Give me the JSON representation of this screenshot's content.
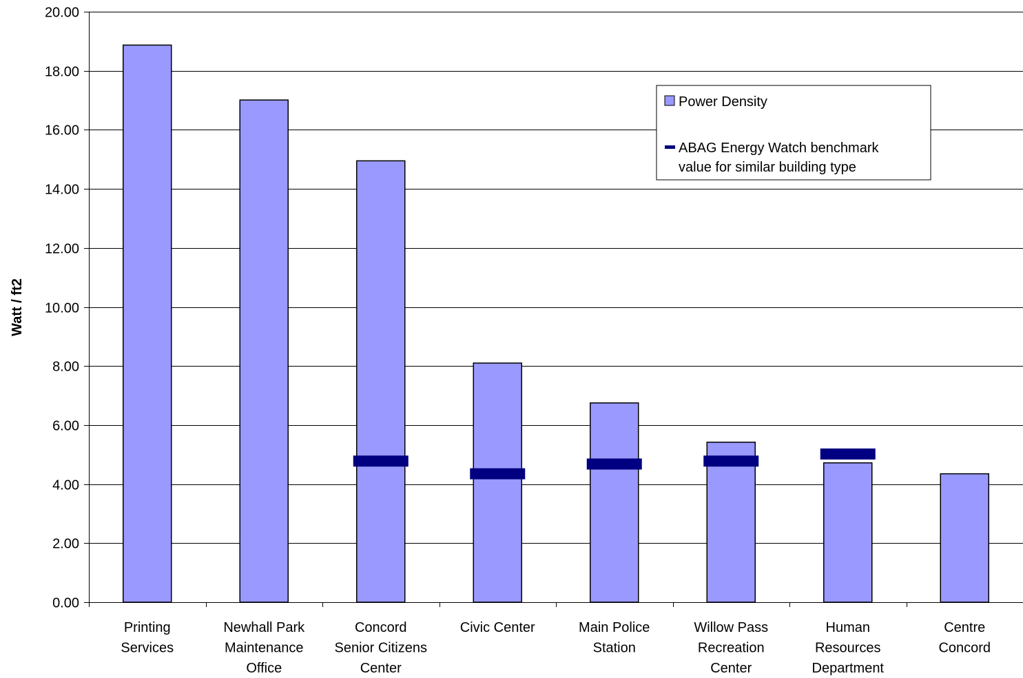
{
  "chart_data": {
    "type": "bar",
    "title": "",
    "xlabel": "",
    "ylabel": "Watt / ft2",
    "ylim": [
      0,
      20
    ],
    "ytick_step": 2,
    "ytick_labels": [
      "0.00",
      "2.00",
      "4.00",
      "6.00",
      "8.00",
      "10.00",
      "12.00",
      "14.00",
      "16.00",
      "18.00",
      "20.00"
    ],
    "grid": true,
    "legend_position": "top-right",
    "categories": [
      [
        "Printing",
        "Services"
      ],
      [
        "Newhall Park",
        "Maintenance",
        "Office"
      ],
      [
        "Concord",
        "Senior Citizens",
        "Center"
      ],
      [
        "Civic Center"
      ],
      [
        "Main Police",
        "Station"
      ],
      [
        "Willow Pass",
        "Recreation",
        "Center"
      ],
      [
        "Human",
        "Resources",
        "Department"
      ],
      [
        "Centre",
        "Concord"
      ]
    ],
    "series": [
      {
        "name": "Power Density",
        "type": "bar",
        "color": "#9999FF",
        "values": [
          18.87,
          17.01,
          14.95,
          8.1,
          6.75,
          5.42,
          4.72,
          4.35
        ]
      },
      {
        "name": "ABAG Energy Watch benchmark value for similar building type",
        "legend_lines": [
          "ABAG Energy Watch benchmark",
          "value for similar building type"
        ],
        "type": "marker",
        "color": "#000080",
        "values": [
          null,
          null,
          4.78,
          4.35,
          4.68,
          4.78,
          5.02,
          null
        ]
      }
    ]
  }
}
